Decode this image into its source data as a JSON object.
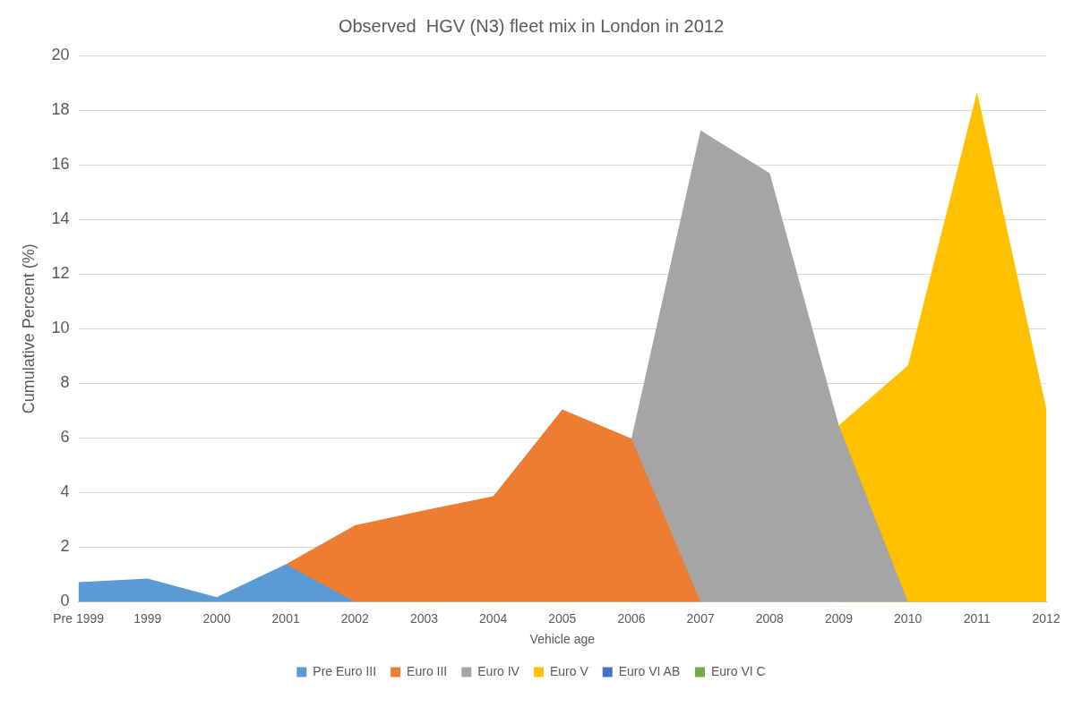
{
  "chart_data": {
    "type": "area",
    "title": "Observed  HGV (N3) fleet mix in London in 2012",
    "xlabel": "Vehicle age",
    "ylabel": "Cumulative Percent (%)",
    "categories": [
      "Pre 1999",
      "1999",
      "2000",
      "2001",
      "2002",
      "2003",
      "2004",
      "2005",
      "2006",
      "2007",
      "2008",
      "2009",
      "2010",
      "2011",
      "2012"
    ],
    "series": [
      {
        "name": "Pre Euro III",
        "color": "#5b9bd5",
        "values": [
          0.72,
          0.85,
          0.17,
          1.37,
          0,
          null,
          null,
          null,
          null,
          null,
          null,
          null,
          null,
          null,
          null
        ]
      },
      {
        "name": "Euro III",
        "color": "#ed7d31",
        "values": [
          null,
          null,
          null,
          1.37,
          2.8,
          3.35,
          3.86,
          7.04,
          5.98,
          0,
          null,
          null,
          null,
          null,
          null
        ]
      },
      {
        "name": "Euro IV",
        "color": "#a5a5a5",
        "values": [
          null,
          null,
          null,
          null,
          null,
          null,
          null,
          null,
          5.98,
          17.26,
          15.69,
          6.46,
          0,
          null,
          null
        ]
      },
      {
        "name": "Euro V",
        "color": "#ffc000",
        "values": [
          null,
          null,
          null,
          null,
          null,
          null,
          null,
          null,
          null,
          null,
          null,
          6.46,
          8.65,
          18.67,
          7.08
        ]
      },
      {
        "name": "Euro VI AB",
        "color": "#4472c4",
        "values": [
          null,
          null,
          null,
          null,
          null,
          null,
          null,
          null,
          null,
          null,
          null,
          null,
          null,
          null,
          null
        ]
      },
      {
        "name": "Euro VI C",
        "color": "#70ad47",
        "values": [
          null,
          null,
          null,
          null,
          null,
          null,
          null,
          null,
          null,
          null,
          null,
          null,
          null,
          null,
          null
        ]
      }
    ],
    "ylim": [
      0,
      20
    ],
    "yticks": [
      0,
      2,
      4,
      6,
      8,
      10,
      12,
      14,
      16,
      18,
      20
    ],
    "grid": "y",
    "legend": "bottom"
  }
}
